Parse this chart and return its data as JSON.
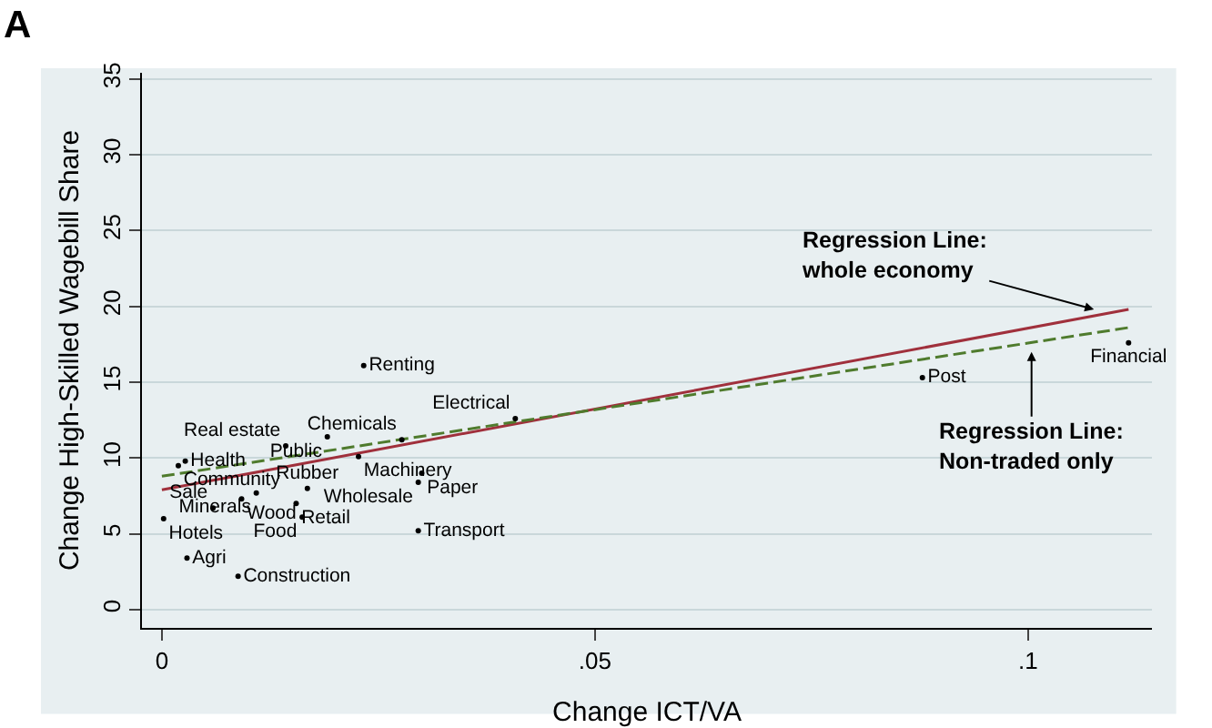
{
  "chart_data": {
    "type": "scatter",
    "title": "A",
    "xlabel": "Change ICT/VA",
    "ylabel": "Change High-Skilled Wagebill Share",
    "xlim": [
      -0.0023,
      0.1143
    ],
    "ylim": [
      -1.2,
      35.4
    ],
    "xticks": [
      0,
      {
        "value": 0.05,
        "label": ".05"
      },
      {
        "value": 0.1,
        "label": ".1"
      }
    ],
    "yticks": [
      0,
      5,
      10,
      15,
      20,
      25,
      30,
      35
    ],
    "grid": "y",
    "series": [
      {
        "color": "#000000",
        "marker": "circle",
        "x": [
          0.0233,
          0.0408,
          0.0277,
          0.0191,
          0.0143,
          0.0227,
          0.03,
          0.0296,
          0.0296,
          0.0002,
          0.0029,
          0.0088,
          0.0019,
          0.0027,
          0.0109,
          0.0168,
          0.0092,
          0.0059,
          0.0155,
          0.0162,
          0.0878,
          0.1116
        ],
        "values": [
          16.1,
          12.6,
          11.2,
          11.4,
          10.8,
          10.1,
          9.0,
          8.4,
          5.2,
          6.0,
          3.4,
          2.2,
          9.5,
          9.8,
          7.7,
          8.0,
          7.3,
          6.7,
          7.0,
          6.1,
          15.3,
          17.6
        ],
        "value_labels": [
          "Renting",
          "Electrical",
          "Chemicals",
          "Public",
          "Real estate",
          "Machinery",
          "Paper",
          "Wholesale",
          "Transport",
          "Hotels",
          "Agri",
          "Construction",
          "Community",
          "Health",
          "Minerals",
          "Rubber",
          "Wood",
          "Sale",
          "Retail",
          "Food",
          "Post",
          "Financial"
        ]
      },
      {
        "type": "line",
        "color": "#a0303c",
        "line_style": "solid",
        "x": [
          0,
          0.1116
        ],
        "values": [
          7.9,
          19.8
        ]
      },
      {
        "type": "line",
        "color": "#4f7b2d",
        "line_style": "dashed",
        "x": [
          0,
          0.1116
        ],
        "values": [
          8.8,
          18.6
        ]
      }
    ],
    "annotations": [
      {
        "text": "Regression Line:\nwhole economy",
        "x": 0.1076,
        "y": 19.8
      },
      {
        "text": "Regression Line:\nNon-traded only",
        "x": 0.1004,
        "y": 17.0
      }
    ]
  }
}
